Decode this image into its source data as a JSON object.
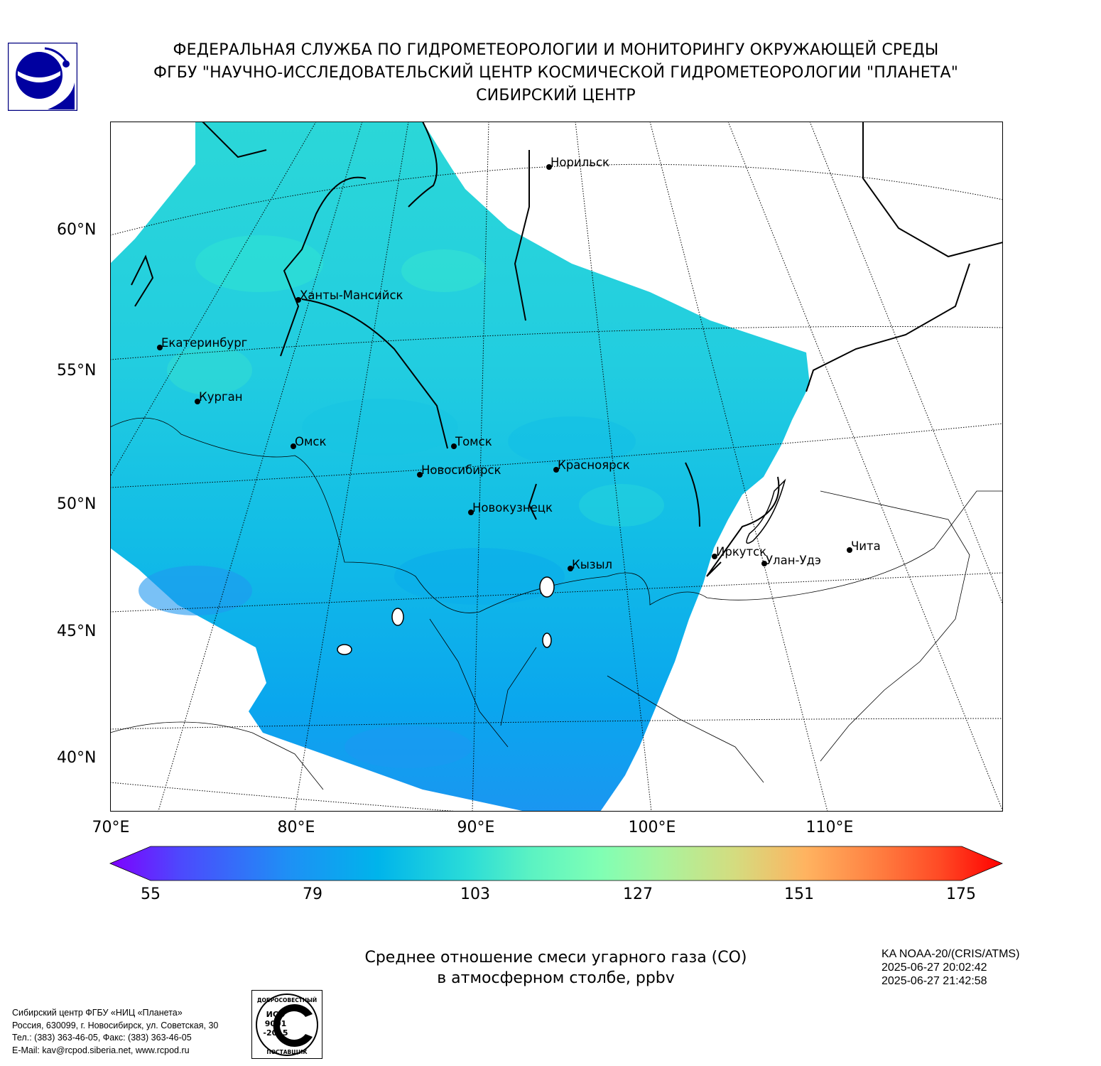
{
  "header": {
    "line1": "ФЕДЕРАЛЬНАЯ СЛУЖБА ПО ГИДРОМЕТЕОРОЛОГИИ И МОНИТОРИНГУ ОКРУЖАЮЩЕЙ СРЕДЫ",
    "line2": "ФГБУ \"НАУЧНО-ИССЛЕДОВАТЕЛЬСКИЙ ЦЕНТР КОСМИЧЕСКОЙ ГИДРОМЕТЕОРОЛОГИИ \"ПЛАНЕТА\"",
    "line3": "СИБИРСКИЙ ЦЕНТР"
  },
  "map": {
    "lat_labels": [
      "60°N",
      "55°N",
      "50°N",
      "45°N",
      "40°N"
    ],
    "lon_labels": [
      "70°E",
      "80°E",
      "90°E",
      "100°E",
      "110°E"
    ],
    "cities": [
      {
        "name": "Норильск"
      },
      {
        "name": "Ханты-Мансийск"
      },
      {
        "name": "Екатеринбург"
      },
      {
        "name": "Курган"
      },
      {
        "name": "Омск"
      },
      {
        "name": "Томск"
      },
      {
        "name": "Новосибирск"
      },
      {
        "name": "Красноярск"
      },
      {
        "name": "Новокузнецк"
      },
      {
        "name": "Кызыл"
      },
      {
        "name": "Иркутск"
      },
      {
        "name": "Улан-Удэ"
      },
      {
        "name": "Чита"
      }
    ]
  },
  "colorbar": {
    "min": 55,
    "max": 175,
    "ticks": [
      "55",
      "79",
      "103",
      "127",
      "151",
      "175"
    ],
    "colors": [
      "#7f00ff",
      "#4c4afd",
      "#1e90f5",
      "#00b4eb",
      "#2adcd8",
      "#5af2c3",
      "#80ffb4",
      "#aaf39d",
      "#d4dc7f",
      "#ffb360",
      "#ff7f41",
      "#ff4a25",
      "#ff0000"
    ]
  },
  "caption": {
    "line1": "Среднее отношение смеси угарного газа (CO)",
    "line2": "в атмосферном столбе, ppbv"
  },
  "satellite": {
    "name": "KA NOAA-20/(CRIS/ATMS)",
    "start": "2025-06-27 20:02:42",
    "end": "2025-06-27 21:42:58"
  },
  "footer": {
    "org": "Сибирский центр ФГБУ «НИЦ «Планета»",
    "address": "Россия, 630099, г. Новосибирск, ул. Советская, 30",
    "phone": "Тел.: (383) 363-46-05, Факс: (383) 363-46-05",
    "email": "E-Mail: kav@rcpod.siberia.net, www.rcpod.ru"
  },
  "iso_badge": {
    "top_text": "ДОБРОСОВЕСТНЫЙ",
    "line1": "ИСО",
    "line2": "9001",
    "line3": "-2015",
    "bottom_text": "ПОСТАВЩИК"
  }
}
